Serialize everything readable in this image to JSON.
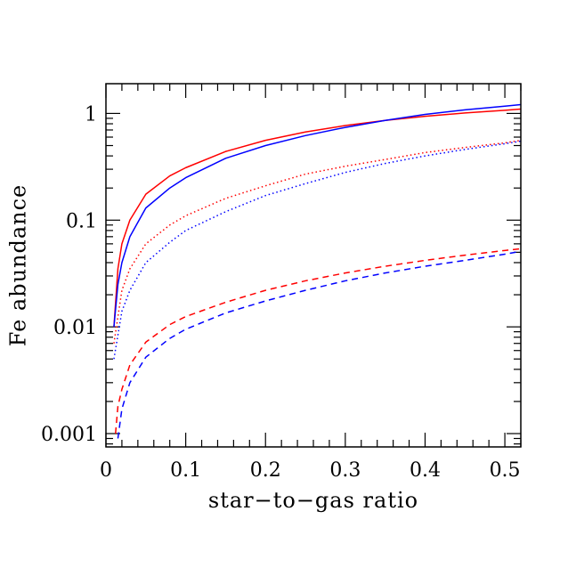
{
  "chart_data": {
    "type": "line",
    "title": "",
    "xlabel": "star−to−gas ratio",
    "ylabel": "Fe abundance",
    "xlim": [
      0,
      0.52
    ],
    "ylim": [
      0.00075,
      1.9
    ],
    "y_scale": "log",
    "grid": false,
    "legend": "none",
    "x_ticks": [
      {
        "value": 0,
        "label": "0"
      },
      {
        "value": 0.1,
        "label": "0.1"
      },
      {
        "value": 0.2,
        "label": "0.2"
      },
      {
        "value": 0.3,
        "label": "0.3"
      },
      {
        "value": 0.4,
        "label": "0.4"
      },
      {
        "value": 0.5,
        "label": "0.5"
      }
    ],
    "y_ticks": [
      {
        "value": 0.001,
        "label": "0.001"
      },
      {
        "value": 0.01,
        "label": "0.01"
      },
      {
        "value": 0.1,
        "label": "0.1"
      },
      {
        "value": 1,
        "label": "1"
      }
    ],
    "series": [
      {
        "color": "#ff0000",
        "style": "solid",
        "x": [
          0.01,
          0.015,
          0.02,
          0.03,
          0.05,
          0.08,
          0.1,
          0.15,
          0.2,
          0.25,
          0.3,
          0.35,
          0.4,
          0.45,
          0.5,
          0.52
        ],
        "y": [
          0.01,
          0.035,
          0.06,
          0.1,
          0.175,
          0.26,
          0.31,
          0.44,
          0.56,
          0.67,
          0.77,
          0.86,
          0.94,
          1.01,
          1.07,
          1.1
        ]
      },
      {
        "color": "#0000ff",
        "style": "solid",
        "x": [
          0.01,
          0.015,
          0.02,
          0.03,
          0.05,
          0.08,
          0.1,
          0.15,
          0.2,
          0.25,
          0.3,
          0.35,
          0.4,
          0.45,
          0.5,
          0.52
        ],
        "y": [
          0.01,
          0.025,
          0.04,
          0.07,
          0.13,
          0.2,
          0.25,
          0.38,
          0.5,
          0.62,
          0.74,
          0.86,
          0.98,
          1.08,
          1.17,
          1.21
        ]
      },
      {
        "color": "#ff0000",
        "style": "dotted",
        "x": [
          0.01,
          0.02,
          0.03,
          0.05,
          0.08,
          0.1,
          0.15,
          0.2,
          0.25,
          0.3,
          0.35,
          0.4,
          0.45,
          0.5,
          0.52
        ],
        "y": [
          0.007,
          0.022,
          0.035,
          0.06,
          0.09,
          0.11,
          0.16,
          0.21,
          0.27,
          0.32,
          0.37,
          0.43,
          0.48,
          0.53,
          0.56
        ]
      },
      {
        "color": "#0000ff",
        "style": "dotted",
        "x": [
          0.01,
          0.02,
          0.03,
          0.05,
          0.08,
          0.1,
          0.15,
          0.2,
          0.25,
          0.3,
          0.35,
          0.4,
          0.45,
          0.5,
          0.52
        ],
        "y": [
          0.005,
          0.014,
          0.022,
          0.04,
          0.062,
          0.08,
          0.12,
          0.17,
          0.22,
          0.28,
          0.34,
          0.4,
          0.46,
          0.52,
          0.55
        ]
      },
      {
        "color": "#ff0000",
        "style": "dashed",
        "x": [
          0.012,
          0.015,
          0.02,
          0.03,
          0.05,
          0.08,
          0.1,
          0.15,
          0.2,
          0.25,
          0.3,
          0.35,
          0.4,
          0.45,
          0.5,
          0.52
        ],
        "y": [
          0.001,
          0.0018,
          0.0026,
          0.0044,
          0.0072,
          0.0105,
          0.0125,
          0.017,
          0.022,
          0.027,
          0.032,
          0.037,
          0.042,
          0.047,
          0.052,
          0.054
        ]
      },
      {
        "color": "#0000ff",
        "style": "dashed",
        "x": [
          0.015,
          0.02,
          0.03,
          0.05,
          0.08,
          0.1,
          0.15,
          0.2,
          0.25,
          0.3,
          0.35,
          0.4,
          0.45,
          0.5,
          0.52
        ],
        "y": [
          0.0009,
          0.0017,
          0.003,
          0.0052,
          0.0078,
          0.0095,
          0.0135,
          0.0175,
          0.022,
          0.027,
          0.032,
          0.037,
          0.042,
          0.048,
          0.051
        ]
      }
    ]
  }
}
